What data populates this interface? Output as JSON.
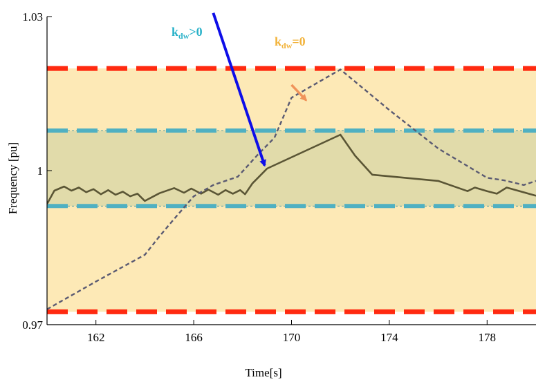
{
  "chart_data": {
    "type": "line",
    "title": "",
    "xlabel": "Time[s]",
    "ylabel": "Frequency [pu]",
    "xlim": [
      160,
      180
    ],
    "ylim": [
      0.97,
      1.03
    ],
    "x_ticks": [
      162,
      166,
      170,
      174,
      178
    ],
    "x_tick_labels": [
      "162",
      "166",
      "170",
      "174",
      "178"
    ],
    "y_ticks": [
      0.97,
      1.0,
      1.03
    ],
    "y_tick_labels": [
      "0.97",
      "1",
      "1.03"
    ],
    "grid": false,
    "outer_band": {
      "lower": 0.9725,
      "upper": 1.0199,
      "color": "#fde9b6",
      "line_color": "#ff2a10"
    },
    "inner_band": {
      "lower": 0.9931,
      "upper": 1.0078,
      "color": "#e1dbaa",
      "line_color": "#4fb0c2"
    },
    "series": [
      {
        "style": "solid",
        "color": "#5a5535",
        "x": [
          160,
          160.3,
          160.7,
          161.0,
          161.3,
          161.6,
          161.9,
          162.2,
          162.5,
          162.8,
          163.1,
          163.4,
          163.7,
          164.0,
          164.6,
          165.2,
          165.6,
          165.9,
          166.3,
          166.6,
          167.0,
          167.3,
          167.6,
          167.9,
          168.1,
          168.4,
          169.0,
          172.0,
          172.6,
          173.3,
          176.0,
          177.2,
          177.5,
          178.0,
          178.4,
          178.8,
          180.0
        ],
        "y": [
          0.9935,
          0.9961,
          0.9969,
          0.9961,
          0.9967,
          0.9958,
          0.9964,
          0.9954,
          0.9962,
          0.9953,
          0.9959,
          0.995,
          0.9955,
          0.9941,
          0.9956,
          0.9966,
          0.9957,
          0.9965,
          0.9955,
          0.9963,
          0.9953,
          0.9962,
          0.9955,
          0.9962,
          0.9954,
          0.9975,
          1.0004,
          1.007,
          1.0029,
          0.9992,
          0.998,
          0.996,
          0.9967,
          0.996,
          0.9955,
          0.9967,
          0.9951
        ]
      },
      {
        "style": "dashed",
        "color": "#5a5a72",
        "x": [
          160,
          162,
          164,
          164.6,
          165.2,
          166,
          166.8,
          167.8,
          168.6,
          169.3,
          170,
          172,
          174,
          176,
          178,
          178.7,
          179.5,
          180
        ],
        "y": [
          0.973,
          0.9784,
          0.9836,
          0.9872,
          0.9906,
          0.995,
          0.9972,
          0.9988,
          1.003,
          1.0064,
          1.0142,
          1.0197,
          1.0118,
          1.0043,
          0.9986,
          0.9981,
          0.9972,
          0.998
        ]
      }
    ],
    "annotations": [
      {
        "label_main": "k",
        "label_sub": "dw",
        "label_rel": ">0",
        "color": "#2ab2c9",
        "arrow_color": "#0e0ee8",
        "arrow_from": [
          166.8,
          1.0307
        ],
        "arrow_to": [
          168.9,
          1.001
        ]
      },
      {
        "label_main": "k",
        "label_sub": "dw",
        "label_rel": "=0",
        "color": "#f2b33b",
        "arrow_color": "#f0935a",
        "arrow_from": [
          170.0,
          1.0167
        ],
        "arrow_to": [
          170.6,
          1.0137
        ]
      }
    ]
  }
}
